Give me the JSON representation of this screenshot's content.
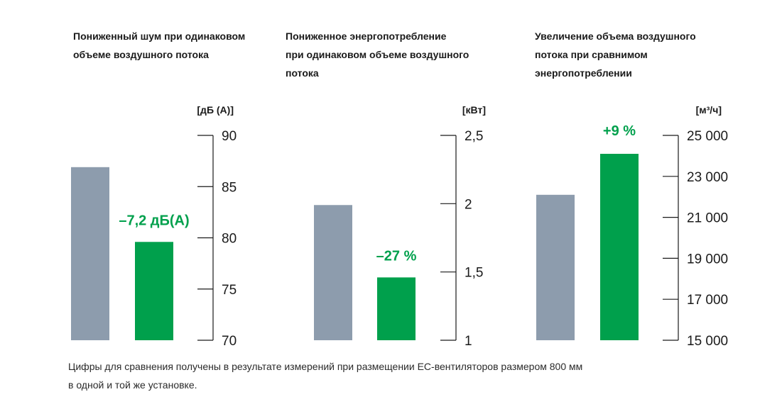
{
  "chart_data": [
    {
      "type": "bar",
      "title_lines": [
        "Пониженный шум при одинаковом",
        "объеме воздушного потока"
      ],
      "unit_label": "[дБ (A)]",
      "ylim": [
        70,
        90
      ],
      "ticks": [
        "90",
        "85",
        "80",
        "75",
        "70"
      ],
      "tick_values": [
        90,
        85,
        80,
        75,
        70
      ],
      "values": [
        86.9,
        79.6
      ],
      "bar_colors": [
        "#8d9cad",
        "#00a04c"
      ],
      "annotation": "–7,2 дБ(A)"
    },
    {
      "type": "bar",
      "title_lines": [
        "Пониженное энергопотребление",
        "при одинаковом объеме воздушного",
        "потока"
      ],
      "unit_label": "[кВт]",
      "ylim": [
        1,
        2.5
      ],
      "ticks": [
        "2,5",
        "2",
        "1,5",
        "1"
      ],
      "tick_values": [
        2.5,
        2,
        1.5,
        1
      ],
      "values": [
        1.99,
        1.46
      ],
      "bar_colors": [
        "#8d9cad",
        "#00a04c"
      ],
      "annotation": "–27 %"
    },
    {
      "type": "bar",
      "title_lines": [
        "Увеличение объема воздушного",
        "потока при сравнимом",
        "энергопотреблении"
      ],
      "unit_label": "[м³/ч]",
      "ylim": [
        15000,
        25000
      ],
      "ticks": [
        "25 000",
        "23 000",
        "21 000",
        "19 000",
        "17 000",
        "15 000"
      ],
      "tick_values": [
        25000,
        23000,
        21000,
        19000,
        17000,
        15000
      ],
      "values": [
        22100,
        24100
      ],
      "bar_colors": [
        "#8d9cad",
        "#00a04c"
      ],
      "annotation": "+9 %"
    }
  ],
  "footnote_lines": [
    "Цифры для сравнения получены в результате измерений при размещении EC-вентиляторов размером 800 мм",
    "в одной и той же установке."
  ],
  "colors": {
    "accent": "#00a04c",
    "reference": "#8d9cad",
    "axis": "#1a1a1a"
  }
}
